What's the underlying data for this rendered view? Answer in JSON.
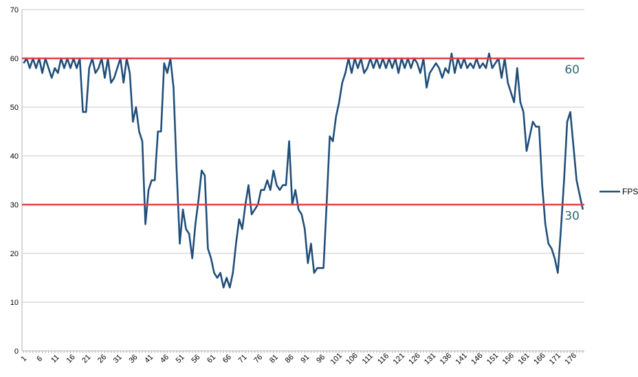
{
  "chart_data": {
    "type": "line",
    "ylim": [
      0,
      70
    ],
    "yticks": [
      0,
      10,
      20,
      30,
      40,
      50,
      60,
      70
    ],
    "x_start": 1,
    "x_end": 180,
    "x_tick_step": 5,
    "grid": "horizontal",
    "legend_placement": "right",
    "series": [
      {
        "name": "FPS",
        "color": "#1f4e79",
        "values": [
          59,
          60,
          58,
          60,
          58,
          60,
          57,
          60,
          58,
          56,
          58,
          57,
          60,
          58,
          60,
          58,
          60,
          58,
          60,
          49,
          49,
          58,
          60,
          57,
          58,
          60,
          56,
          60,
          55,
          56,
          58,
          60,
          55,
          60,
          57,
          47,
          50,
          45,
          43,
          26,
          33,
          35,
          35,
          45,
          45,
          59,
          57,
          60,
          54,
          37,
          22,
          29,
          25,
          24,
          19,
          26,
          31,
          37,
          36,
          21,
          19,
          16,
          15,
          16,
          13,
          15,
          13,
          16,
          22,
          27,
          25,
          30,
          34,
          28,
          29,
          30,
          33,
          33,
          35,
          33,
          37,
          34,
          33,
          34,
          34,
          43,
          30,
          33,
          29,
          28,
          25,
          18,
          22,
          16,
          17,
          17,
          17,
          30,
          44,
          43,
          48,
          51,
          55,
          57,
          60,
          57,
          60,
          58,
          60,
          57,
          58,
          60,
          58,
          60,
          58,
          60,
          58,
          60,
          58,
          60,
          57,
          60,
          58,
          60,
          58,
          60,
          59,
          57,
          60,
          54,
          57,
          58,
          59,
          58,
          56,
          58,
          57,
          61,
          57,
          60,
          58,
          60,
          58,
          59,
          58,
          60,
          58,
          59,
          58,
          61,
          58,
          59,
          60,
          56,
          60,
          55,
          53,
          51,
          58,
          51,
          49,
          41,
          44,
          47,
          46,
          46,
          34,
          26,
          22,
          21,
          19,
          16,
          25,
          35,
          47,
          49,
          42,
          35,
          32,
          29
        ]
      }
    ],
    "reference_lines": [
      {
        "value": 60,
        "label": "60",
        "color": "#e04040"
      },
      {
        "value": 30,
        "label": "30",
        "color": "#e04040"
      }
    ]
  }
}
